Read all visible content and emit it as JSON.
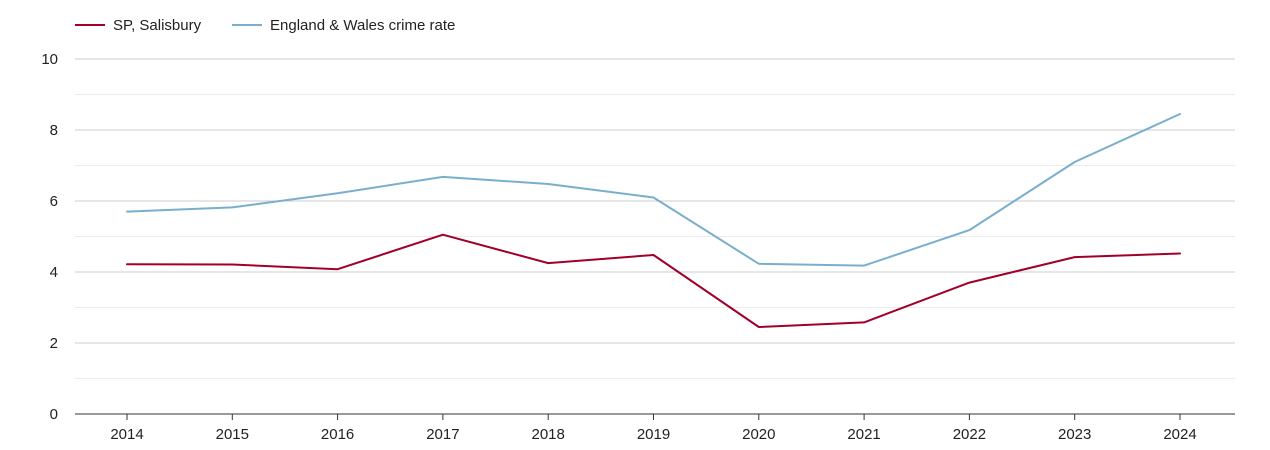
{
  "chart_data": {
    "type": "line",
    "title": "",
    "xlabel": "",
    "ylabel": "",
    "x": [
      "2014",
      "2015",
      "2016",
      "2017",
      "2018",
      "2019",
      "2020",
      "2021",
      "2022",
      "2023",
      "2024"
    ],
    "ylim": [
      0,
      10
    ],
    "yticks": [
      0,
      2,
      4,
      6,
      8,
      10
    ],
    "grid": true,
    "legend_position": "top-left",
    "series": [
      {
        "name": "SP, Salisbury",
        "color": "#a0002a",
        "values": [
          4.22,
          4.21,
          4.08,
          5.05,
          4.25,
          4.48,
          2.45,
          2.58,
          3.7,
          4.42,
          4.52
        ]
      },
      {
        "name": "England & Wales crime rate",
        "color": "#7aaecd",
        "values": [
          5.7,
          5.82,
          6.22,
          6.68,
          6.48,
          6.1,
          4.23,
          4.18,
          5.18,
          7.1,
          8.45
        ]
      }
    ]
  }
}
